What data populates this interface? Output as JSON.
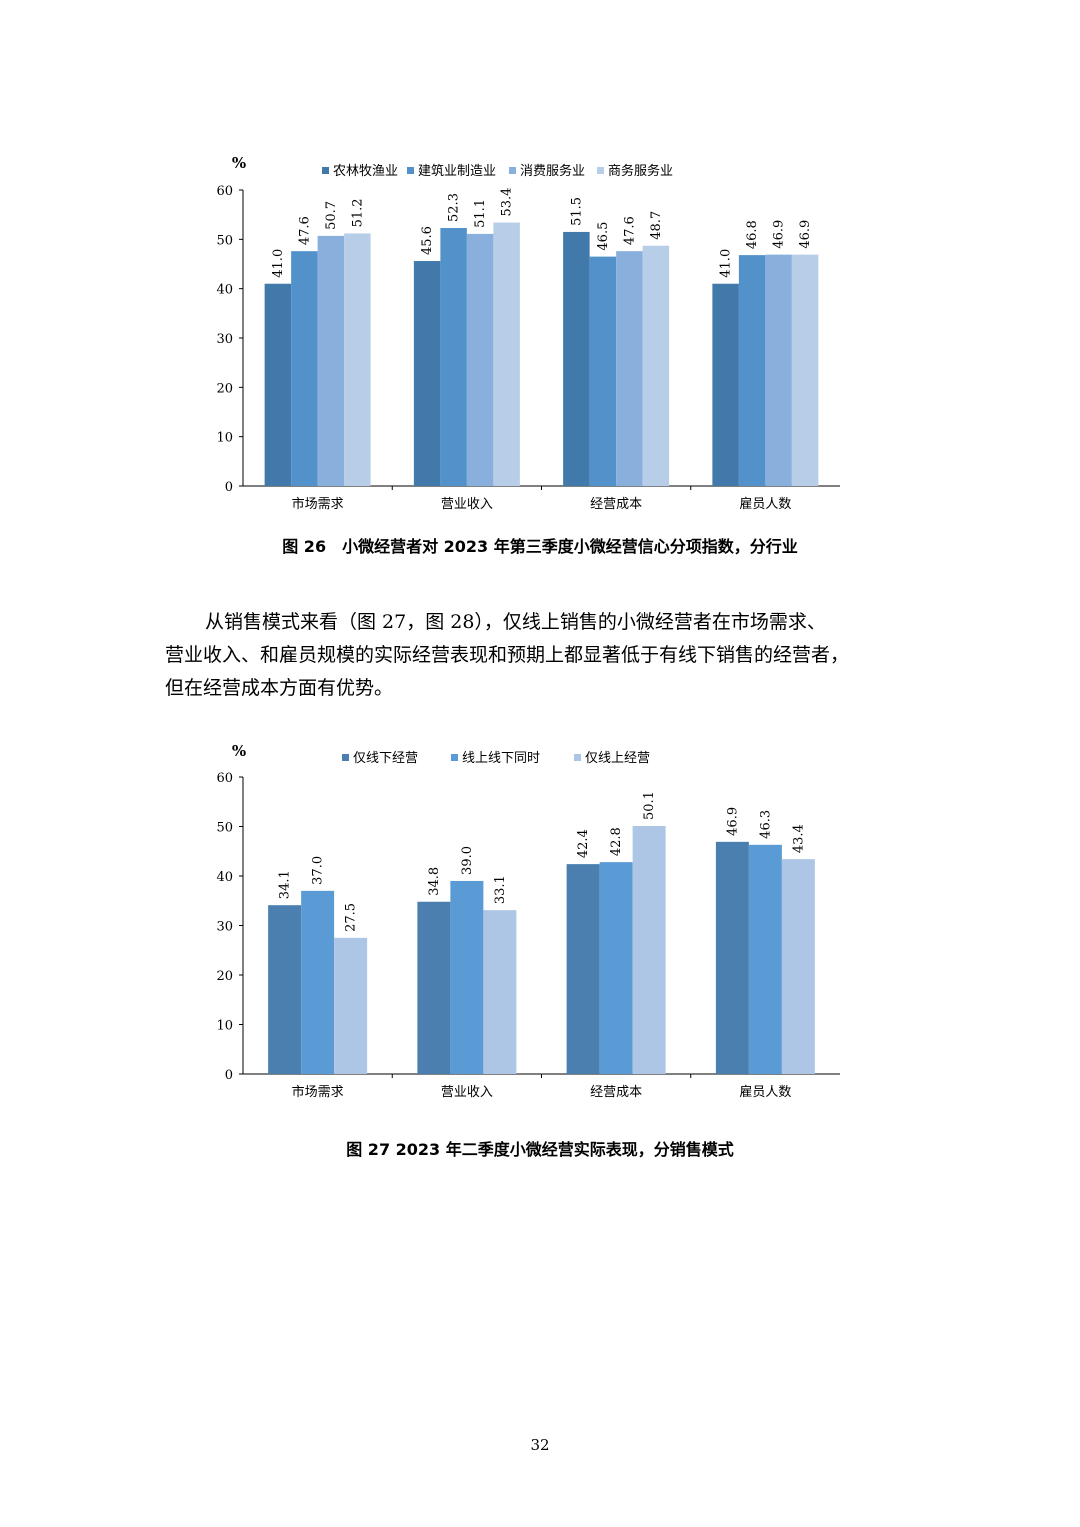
{
  "chart_data": [
    {
      "type": "bar",
      "unit_label": "%",
      "categories": [
        "市场需求",
        "营业收入",
        "经营成本",
        "雇员人数"
      ],
      "series": [
        {
          "name": "农林牧渔业",
          "color": "#4179AA",
          "values": [
            41.0,
            45.6,
            51.5,
            41.0
          ]
        },
        {
          "name": "建筑业制造业",
          "color": "#5391CB",
          "values": [
            47.6,
            52.3,
            46.5,
            46.8
          ]
        },
        {
          "name": "消费服务业",
          "color": "#89B0DD",
          "values": [
            50.7,
            51.1,
            47.6,
            46.9
          ]
        },
        {
          "name": "商务服务业",
          "color": "#B7CDE8",
          "values": [
            51.2,
            53.4,
            48.7,
            46.9
          ]
        }
      ],
      "yticks": [
        "0",
        "10",
        "20",
        "30",
        "40",
        "50",
        "60"
      ],
      "ylim": [
        0,
        60
      ],
      "legend_position": "top"
    },
    {
      "type": "bar",
      "unit_label": "%",
      "categories": [
        "市场需求",
        "营业收入",
        "经营成本",
        "雇员人数"
      ],
      "series": [
        {
          "name": "仅线下经营",
          "color": "#4A7FAF",
          "values": [
            34.1,
            34.8,
            42.4,
            46.9
          ]
        },
        {
          "name": "线上线下同时",
          "color": "#5B9BD5",
          "values": [
            37.0,
            39.0,
            42.8,
            46.3
          ]
        },
        {
          "name": "仅线上经营",
          "color": "#ADC6E5",
          "values": [
            27.5,
            33.1,
            50.1,
            43.4
          ]
        }
      ],
      "yticks": [
        "0",
        "10",
        "20",
        "30",
        "40",
        "50",
        "60"
      ],
      "ylim": [
        0,
        60
      ],
      "legend_position": "top"
    }
  ],
  "captions": {
    "figure26": "图 26　小微经营者对 2023 年第三季度小微经营信心分项指数，分行业",
    "figure27": "图 27 2023 年二季度小微经营实际表现，分销售模式"
  },
  "paragraph": {
    "lines": [
      "从销售模式来看（图 27，图 28），仅线上销售的小微经营者在市场需求、",
      "营业收入、和雇员规模的实际经营表现和预期上都显著低于有线下销售的经营者，",
      "但在经营成本方面有优势。"
    ]
  },
  "page_number": "32"
}
